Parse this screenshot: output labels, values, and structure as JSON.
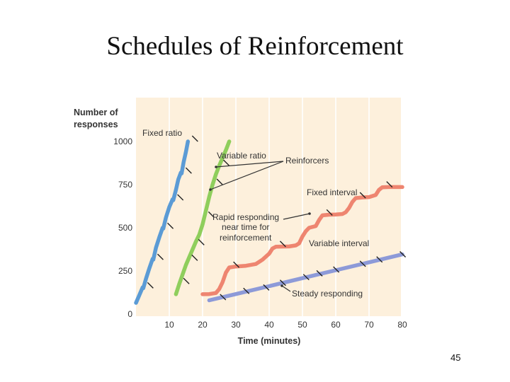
{
  "slide": {
    "title": "Schedules of Reinforcement",
    "page_number": "45"
  },
  "chart_data": {
    "type": "line",
    "xlabel": "Time (minutes)",
    "ylabel": "Number of responses",
    "xlim": [
      0,
      80
    ],
    "ylim": [
      0,
      1000
    ],
    "x_ticks": [
      10,
      20,
      30,
      40,
      50,
      60,
      70,
      80
    ],
    "y_ticks": [
      0,
      250,
      500,
      750,
      1000
    ],
    "grid": "vertical",
    "colors": {
      "background": "#fdf0dc",
      "grid": "#ffffff",
      "fixed_ratio": "#5b9bd5",
      "variable_ratio": "#8fce5c",
      "fixed_interval": "#ee8570",
      "variable_interval": "#8d9ad8",
      "reinforcer_mark": "#222222"
    },
    "series": [
      {
        "name": "Fixed ratio",
        "points": [
          [
            0,
            65
          ],
          [
            1,
            110
          ],
          [
            2,
            155
          ],
          [
            2.2,
            150
          ],
          [
            3,
            205
          ],
          [
            4,
            265
          ],
          [
            5,
            320
          ],
          [
            5.2,
            315
          ],
          [
            6,
            385
          ],
          [
            7,
            445
          ],
          [
            8,
            500
          ],
          [
            8.2,
            495
          ],
          [
            9,
            560
          ],
          [
            10,
            620
          ],
          [
            11,
            665
          ],
          [
            11.2,
            660
          ],
          [
            12,
            720
          ],
          [
            12.7,
            780
          ],
          [
            13.5,
            820
          ],
          [
            13.7,
            815
          ],
          [
            14.3,
            880
          ],
          [
            15,
            940
          ],
          [
            15.6,
            1000
          ]
        ],
        "reinforcers": [
          [
            2.2,
            150
          ],
          [
            5.2,
            315
          ],
          [
            8.2,
            495
          ],
          [
            11.2,
            660
          ],
          [
            13.7,
            815
          ],
          [
            15.6,
            1000
          ]
        ]
      },
      {
        "name": "Variable ratio",
        "points": [
          [
            12,
            115
          ],
          [
            13,
            175
          ],
          [
            14,
            230
          ],
          [
            15,
            285
          ],
          [
            16,
            330
          ],
          [
            17,
            375
          ],
          [
            18,
            420
          ],
          [
            19,
            460
          ],
          [
            20,
            520
          ],
          [
            21,
            600
          ],
          [
            22,
            680
          ],
          [
            23,
            750
          ],
          [
            24,
            810
          ],
          [
            25,
            860
          ],
          [
            26,
            905
          ],
          [
            27,
            950
          ],
          [
            28,
            1000
          ]
        ],
        "reinforcers": [
          [
            13,
            175
          ],
          [
            15.5,
            310
          ],
          [
            17.5,
            400
          ],
          [
            20.5,
            560
          ],
          [
            23,
            750
          ],
          [
            25,
            860
          ]
        ]
      },
      {
        "name": "Fixed interval",
        "points": [
          [
            20,
            115
          ],
          [
            22,
            116
          ],
          [
            24,
            122
          ],
          [
            25,
            145
          ],
          [
            26,
            185
          ],
          [
            27,
            240
          ],
          [
            28,
            270
          ],
          [
            30,
            276
          ],
          [
            33,
            280
          ],
          [
            36,
            290
          ],
          [
            38,
            315
          ],
          [
            40,
            350
          ],
          [
            41,
            380
          ],
          [
            42,
            390
          ],
          [
            46,
            392
          ],
          [
            48,
            398
          ],
          [
            49,
            410
          ],
          [
            50,
            450
          ],
          [
            51,
            480
          ],
          [
            52,
            500
          ],
          [
            54,
            510
          ],
          [
            55,
            545
          ],
          [
            56,
            572
          ],
          [
            58,
            576
          ],
          [
            60,
            577
          ],
          [
            62,
            580
          ],
          [
            63,
            590
          ],
          [
            64,
            615
          ],
          [
            65,
            650
          ],
          [
            66,
            672
          ],
          [
            68,
            676
          ],
          [
            70,
            678
          ],
          [
            72,
            690
          ],
          [
            73,
            720
          ],
          [
            74,
            735
          ],
          [
            76,
            736
          ],
          [
            80,
            736
          ]
        ],
        "reinforcers": [
          [
            28,
            270
          ],
          [
            42,
            390
          ],
          [
            56,
            572
          ],
          [
            66,
            672
          ],
          [
            74,
            735
          ]
        ]
      },
      {
        "name": "Variable interval",
        "points": [
          [
            22,
            80
          ],
          [
            30,
            116
          ],
          [
            40,
            162
          ],
          [
            50,
            208
          ],
          [
            60,
            254
          ],
          [
            70,
            300
          ],
          [
            80,
            346
          ]
        ],
        "reinforcers": [
          [
            24,
            82
          ],
          [
            31,
            118
          ],
          [
            37,
            138
          ],
          [
            42,
            165
          ],
          [
            49,
            198
          ],
          [
            53,
            220
          ],
          [
            58,
            242
          ],
          [
            66,
            275
          ],
          [
            71,
            300
          ],
          [
            78,
            330
          ]
        ]
      }
    ],
    "annotations": [
      {
        "text": "Fixed ratio"
      },
      {
        "text": "Variable ratio"
      },
      {
        "text": "Reinforcers"
      },
      {
        "text": "Fixed interval"
      },
      {
        "text": "Rapid responding"
      },
      {
        "text": "near time for"
      },
      {
        "text": "reinforcement"
      },
      {
        "text": "Variable interval"
      },
      {
        "text": "Steady responding"
      }
    ]
  }
}
